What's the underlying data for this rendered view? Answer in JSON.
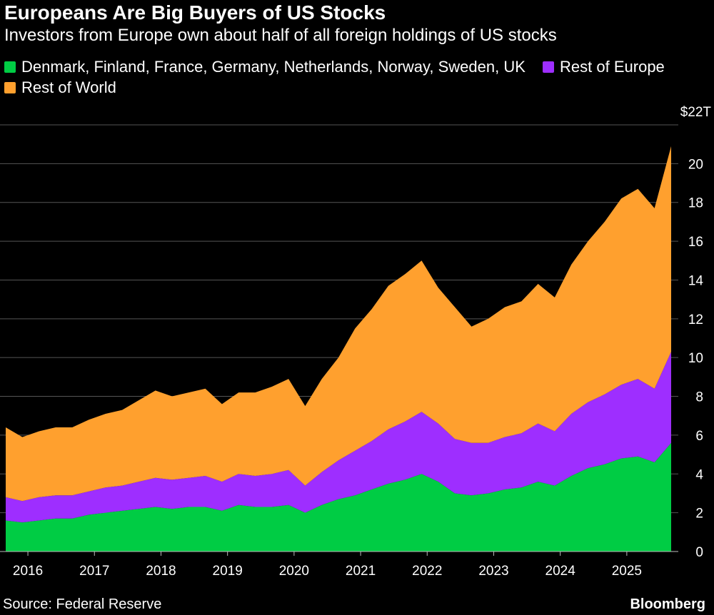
{
  "header": {
    "title": "Europeans Are Big Buyers of US Stocks",
    "subtitle": "Investors from Europe own about half of all foreign holdings of US stocks"
  },
  "legend": {
    "items": [
      {
        "label": "Denmark, Finland, France, Germany, Netherlands, Norway, Sweden, UK",
        "color": "#00cc44"
      },
      {
        "label": "Rest of Europe",
        "color": "#9e2eff"
      },
      {
        "label": "Rest of World",
        "color": "#ffa02e"
      }
    ]
  },
  "footer": {
    "source": "Source: Federal Reserve",
    "brand": "Bloomberg"
  },
  "chart_data": {
    "type": "area",
    "stacked": true,
    "x": [
      "2015-09",
      "2015-12",
      "2016-03",
      "2016-06",
      "2016-09",
      "2016-12",
      "2017-03",
      "2017-06",
      "2017-09",
      "2017-12",
      "2018-03",
      "2018-06",
      "2018-09",
      "2018-12",
      "2019-03",
      "2019-06",
      "2019-09",
      "2019-12",
      "2020-03",
      "2020-06",
      "2020-09",
      "2020-12",
      "2021-03",
      "2021-06",
      "2021-09",
      "2021-12",
      "2022-03",
      "2022-06",
      "2022-09",
      "2022-12",
      "2023-03",
      "2023-06",
      "2023-09",
      "2023-12",
      "2024-03",
      "2024-06",
      "2024-09",
      "2024-12",
      "2025-03",
      "2025-06",
      "2025-09"
    ],
    "series": [
      {
        "name": "Denmark, Finland, France, Germany, Netherlands, Norway, Sweden, UK",
        "color": "#00cc44",
        "values": [
          1.6,
          1.5,
          1.6,
          1.7,
          1.7,
          1.9,
          2.0,
          2.1,
          2.2,
          2.3,
          2.2,
          2.3,
          2.3,
          2.1,
          2.4,
          2.3,
          2.3,
          2.4,
          2.0,
          2.4,
          2.7,
          2.9,
          3.2,
          3.5,
          3.7,
          4.0,
          3.6,
          3.0,
          2.9,
          3.0,
          3.2,
          3.3,
          3.6,
          3.4,
          3.9,
          4.3,
          4.5,
          4.8,
          4.9,
          4.6,
          5.6
        ]
      },
      {
        "name": "Rest of Europe",
        "color": "#9e2eff",
        "values": [
          1.2,
          1.1,
          1.2,
          1.2,
          1.2,
          1.2,
          1.3,
          1.3,
          1.4,
          1.5,
          1.5,
          1.5,
          1.6,
          1.5,
          1.6,
          1.6,
          1.7,
          1.8,
          1.4,
          1.7,
          2.0,
          2.3,
          2.5,
          2.8,
          3.0,
          3.2,
          3.0,
          2.8,
          2.7,
          2.6,
          2.7,
          2.8,
          3.0,
          2.8,
          3.2,
          3.4,
          3.6,
          3.8,
          4.0,
          3.8,
          4.7
        ]
      },
      {
        "name": "Rest of World",
        "color": "#ffa02e",
        "values": [
          3.6,
          3.3,
          3.4,
          3.5,
          3.5,
          3.7,
          3.8,
          3.9,
          4.2,
          4.5,
          4.3,
          4.4,
          4.5,
          4.0,
          4.2,
          4.3,
          4.5,
          4.7,
          4.1,
          4.8,
          5.3,
          6.3,
          6.8,
          7.4,
          7.6,
          7.8,
          7.0,
          6.8,
          6.0,
          6.4,
          6.7,
          6.8,
          7.2,
          6.9,
          7.7,
          8.3,
          8.9,
          9.6,
          9.8,
          9.3,
          10.6
        ]
      }
    ],
    "yaxis": {
      "min": 0,
      "max": 22,
      "ticks": [
        0,
        2,
        4,
        6,
        8,
        10,
        12,
        14,
        16,
        18,
        20,
        22
      ],
      "top_label": "$22T"
    },
    "xaxis": {
      "tick_labels": [
        "2016",
        "2017",
        "2018",
        "2019",
        "2020",
        "2021",
        "2022",
        "2023",
        "2024",
        "2025"
      ]
    },
    "grid": true
  }
}
